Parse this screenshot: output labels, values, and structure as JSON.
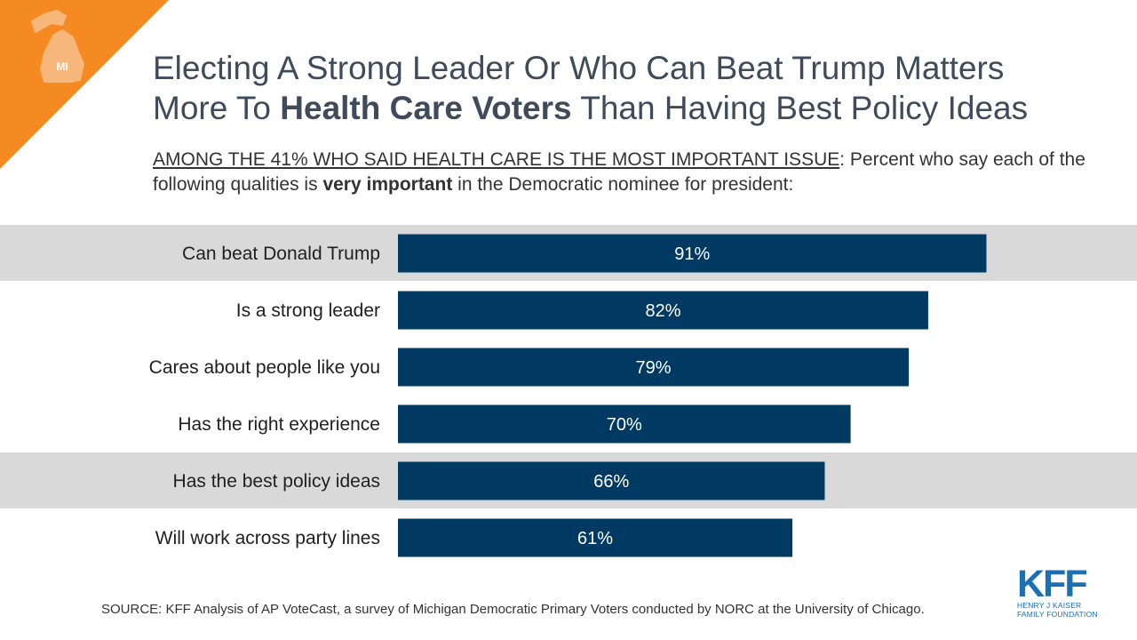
{
  "header": {
    "title_line1": "Electing A Strong Leader Or Who Can Beat Trump Matters",
    "title_line2_pre": "More To ",
    "title_line2_bold": "Health Care Voters",
    "title_line2_post": " Than Having Best Policy Ideas",
    "subtitle_underlined": "AMONG THE 41% WHO SAID HEALTH CARE IS THE MOST IMPORTANT ISSUE",
    "subtitle_after_colon": ": Percent who say each of the following qualities is ",
    "subtitle_bold": "very important",
    "subtitle_end": " in the Democratic nominee for president:",
    "state_badge": "MI"
  },
  "chart_data": {
    "type": "bar",
    "orientation": "horizontal",
    "categories": [
      "Can beat Donald Trump",
      "Is a strong leader",
      "Cares about people like you",
      "Has the right experience",
      "Has the best policy ideas",
      "Will work across party lines"
    ],
    "values": [
      91,
      82,
      79,
      70,
      66,
      61
    ],
    "value_labels": [
      "91%",
      "82%",
      "79%",
      "70%",
      "66%",
      "61%"
    ],
    "highlighted_rows": [
      0,
      4
    ],
    "bar_color": "#003a63",
    "highlight_color": "#d9d9d9"
  },
  "footer": {
    "source": "SOURCE: KFF Analysis of AP VoteCast, a survey of Michigan Democratic Primary Voters conducted by NORC at the University of Chicago.",
    "logo_mark": "KFF",
    "logo_line1": "HENRY J KAISER",
    "logo_line2": "FAMILY FOUNDATION"
  },
  "colors": {
    "accent_orange": "#f58a22",
    "title": "#3f4b5b",
    "brand_blue": "#1a6fb5"
  }
}
